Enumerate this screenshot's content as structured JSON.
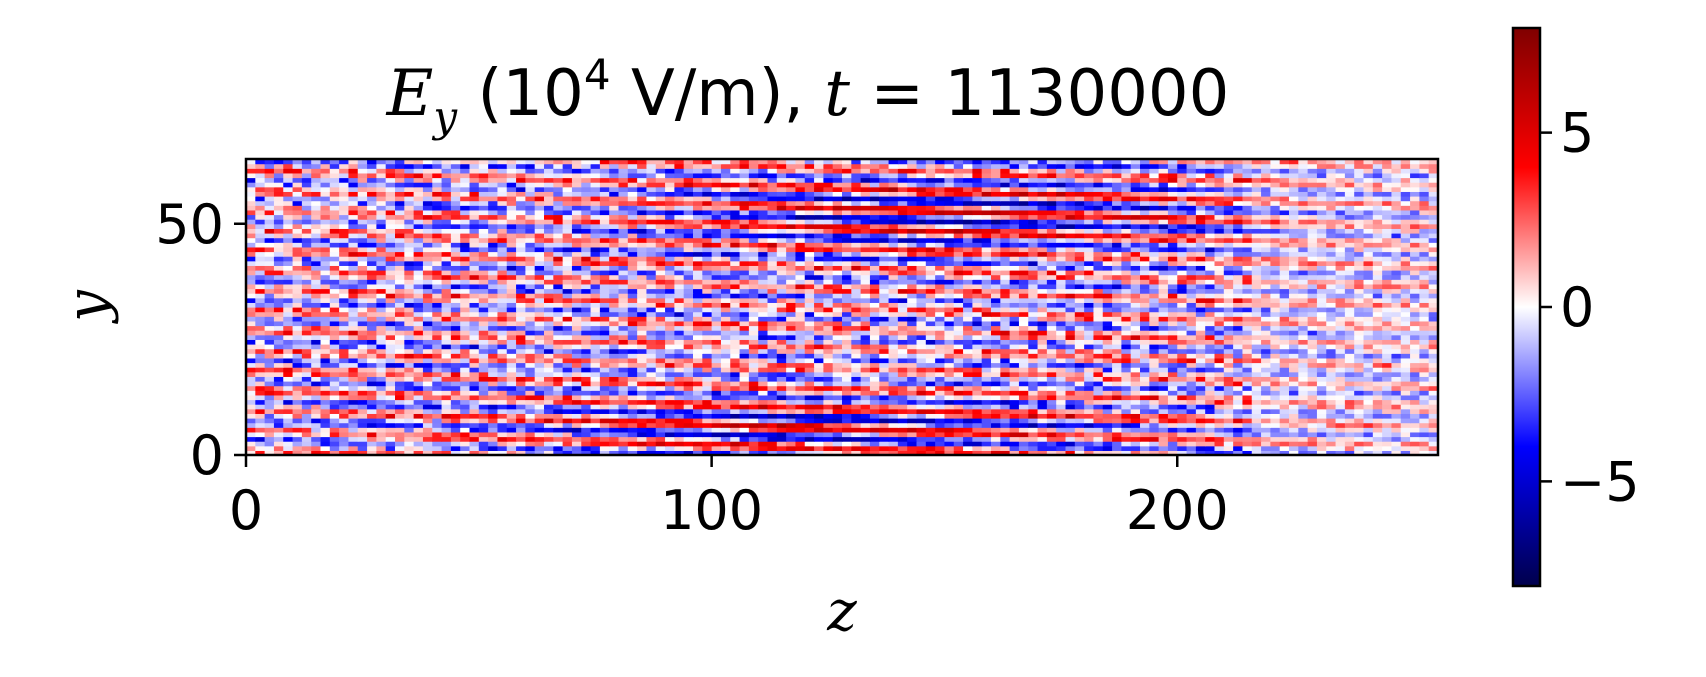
{
  "chart_data": {
    "type": "heatmap",
    "title": {
      "sym": "E",
      "sub": "y",
      "unit_open": " (10",
      "unit_exp": "4",
      "unit_close": " V/m), ",
      "time_sym": "t",
      "time_eq": " = ",
      "time_val": "1130000"
    },
    "xlabel": "z",
    "ylabel": "y",
    "xlim": [
      0,
      256
    ],
    "ylim": [
      0,
      64
    ],
    "xticks": [
      0,
      100,
      200
    ],
    "xtick_labels": [
      "0",
      "100",
      "200"
    ],
    "yticks": [
      0,
      50
    ],
    "ytick_labels": [
      "0",
      "50"
    ],
    "colorbar": {
      "cmap": "seismic",
      "vmin": -8,
      "vmax": 8,
      "ticks": [
        5,
        0,
        -5
      ],
      "tick_labels": [
        "5",
        "0",
        "−5"
      ],
      "colors": [
        "#00004c",
        "#0000ff",
        "#ffffff",
        "#ff0000",
        "#800000"
      ]
    },
    "grid": false
  }
}
